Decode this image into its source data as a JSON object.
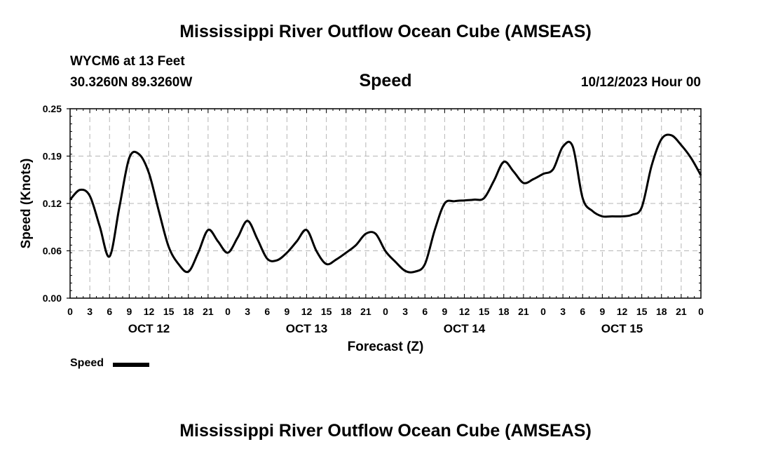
{
  "header": {
    "title_top": "Mississippi River Outflow Ocean Cube (AMSEAS)",
    "station": "WYCM6 at 13 Feet",
    "coords": "30.3260N  89.3260W",
    "variable": "Speed",
    "datetime": "10/12/2023 Hour 00"
  },
  "footer": {
    "title_bottom": "Mississippi River Outflow Ocean Cube (AMSEAS)"
  },
  "legend": {
    "label": "Speed"
  },
  "chart_data": {
    "type": "line",
    "title": "Speed",
    "xlabel": "Forecast (Z)",
    "ylabel": "Speed (Knots)",
    "ylim": [
      0,
      0.25
    ],
    "xlim": [
      0,
      96
    ],
    "y_ticks": [
      "0.00",
      "0.06",
      "0.12",
      "0.19",
      "0.25"
    ],
    "y_tick_values": [
      0,
      0.0625,
      0.125,
      0.1875,
      0.25
    ],
    "x_tick_labels": [
      "0",
      "3",
      "6",
      "9",
      "12",
      "15",
      "18",
      "21",
      "0",
      "3",
      "6",
      "9",
      "12",
      "15",
      "18",
      "21",
      "0",
      "3",
      "6",
      "9",
      "12",
      "15",
      "18",
      "21",
      "0",
      "3",
      "6",
      "9",
      "12",
      "15",
      "18",
      "21",
      "0"
    ],
    "date_labels": [
      {
        "label": "OCT 12",
        "hour": 12
      },
      {
        "label": "OCT 13",
        "hour": 36
      },
      {
        "label": "OCT 14",
        "hour": 60
      },
      {
        "label": "OCT 15",
        "hour": 84
      }
    ],
    "grid": true,
    "series": [
      {
        "name": "Speed",
        "x": [
          0,
          1.5,
          3,
          4.5,
          6,
          7.5,
          9,
          10.5,
          12,
          13.5,
          15,
          16.5,
          18,
          19.5,
          21,
          22.5,
          24,
          25.5,
          27,
          28.5,
          30,
          31.5,
          33,
          34.5,
          36,
          37.5,
          39,
          40.5,
          42,
          43.5,
          45,
          46.5,
          48,
          49.5,
          51,
          52.5,
          54,
          55.5,
          57,
          58.5,
          60,
          61.5,
          63,
          64.5,
          66,
          67.5,
          69,
          70.5,
          72,
          73.5,
          75,
          76.5,
          78,
          79.5,
          81,
          82.5,
          84,
          85.5,
          87,
          88.5,
          90,
          91.5,
          93,
          94.5,
          96
        ],
        "values": [
          0.13,
          0.143,
          0.135,
          0.095,
          0.055,
          0.12,
          0.185,
          0.19,
          0.165,
          0.115,
          0.068,
          0.045,
          0.035,
          0.06,
          0.09,
          0.075,
          0.06,
          0.08,
          0.102,
          0.078,
          0.052,
          0.05,
          0.06,
          0.075,
          0.09,
          0.062,
          0.045,
          0.051,
          0.06,
          0.07,
          0.085,
          0.085,
          0.062,
          0.048,
          0.036,
          0.035,
          0.045,
          0.09,
          0.125,
          0.128,
          0.129,
          0.13,
          0.132,
          0.155,
          0.18,
          0.167,
          0.152,
          0.157,
          0.164,
          0.17,
          0.2,
          0.2,
          0.132,
          0.115,
          0.108,
          0.108,
          0.108,
          0.11,
          0.12,
          0.175,
          0.21,
          0.215,
          0.202,
          0.185,
          0.162
        ]
      }
    ]
  }
}
